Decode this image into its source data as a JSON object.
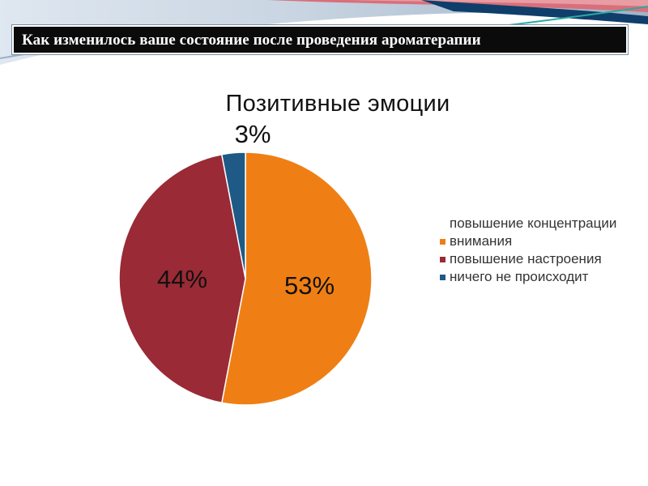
{
  "header": {
    "title": "Как изменилось ваше состояние после проведения ароматерапии"
  },
  "colors": {
    "concentration": "#ef7f14",
    "mood": "#9a2a35",
    "nothing": "#1e5a85"
  },
  "chart_data": {
    "type": "pie",
    "title": "Позитивные эмоции",
    "legend_position": "right",
    "slices": [
      {
        "label": "повышение концентрации внимания",
        "value": 53,
        "display": "53%"
      },
      {
        "label": "повышение настроения",
        "value": 44,
        "display": "44%"
      },
      {
        "label": "ничего не происходит",
        "value": 3,
        "display": "3%"
      }
    ]
  }
}
